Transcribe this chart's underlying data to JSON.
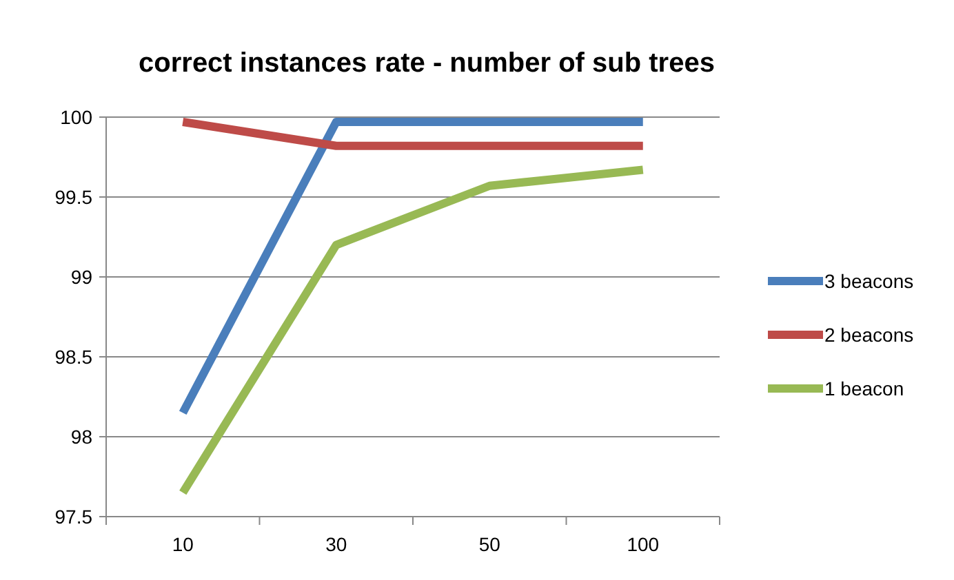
{
  "chart_data": {
    "type": "line",
    "title": "correct instances rate - number of sub trees",
    "categories": [
      "10",
      "30",
      "50",
      "100"
    ],
    "series": [
      {
        "name": "3 beacons",
        "color": "#4a7ebb",
        "values": [
          98.15,
          99.97,
          99.97,
          99.97
        ]
      },
      {
        "name": "2 beacons",
        "color": "#be4b48",
        "values": [
          99.97,
          99.82,
          99.82,
          99.82
        ]
      },
      {
        "name": "1 beacon",
        "color": "#98b954",
        "values": [
          97.65,
          99.2,
          99.57,
          99.67
        ]
      }
    ],
    "ylim": [
      97.5,
      100
    ],
    "yticks": [
      97.5,
      98,
      98.5,
      99,
      99.5,
      100
    ],
    "grid": "y",
    "legend": "right",
    "marker": "none"
  }
}
